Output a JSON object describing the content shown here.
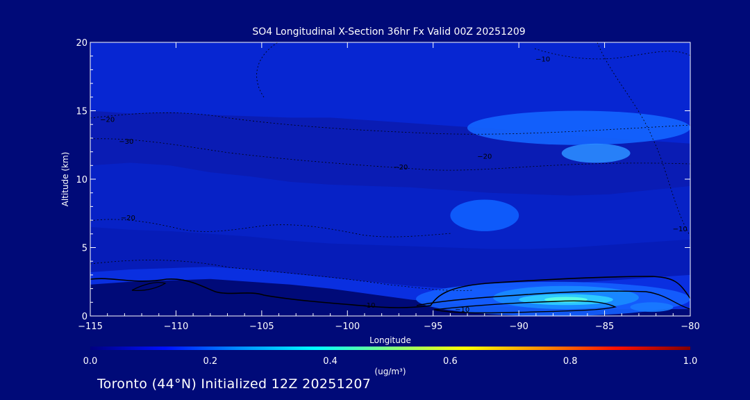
{
  "chart_data": {
    "type": "heatmap",
    "title": "SO4 Longitudinal X-Section 36hr  Fx Valid 00Z 20251209",
    "xlabel": "Longitude",
    "ylabel": "Altitude (km)",
    "xlim": [
      -115,
      -80
    ],
    "ylim": [
      0,
      20
    ],
    "x_ticks": [
      -115,
      -110,
      -105,
      -100,
      -95,
      -90,
      -85,
      -80
    ],
    "x_tick_labels": [
      "−115",
      "−110",
      "−105",
      "−100",
      "−95",
      "−90",
      "−85",
      "−80"
    ],
    "y_ticks": [
      0,
      5,
      10,
      15,
      20
    ],
    "y_tick_labels": [
      "0",
      "5",
      "10",
      "15",
      "20"
    ],
    "colorbar": {
      "label": "(ug/m³)",
      "range": [
        0.0,
        1.0
      ],
      "ticks": [
        0.0,
        0.2,
        0.4,
        0.6,
        0.8,
        1.0
      ],
      "tick_labels": [
        "0.0",
        "0.2",
        "0.4",
        "0.6",
        "0.8",
        "1.0"
      ],
      "colormap": [
        "#000080",
        "#0010ff",
        "#0090ff",
        "#00ffff",
        "#80ff80",
        "#ffff00",
        "#ff9000",
        "#ff1000",
        "#800000"
      ]
    },
    "filled_layers": [
      {
        "color": "#000a78",
        "y_top": [
          2.3,
          2.5,
          2.6,
          2.7,
          2.5,
          2.3,
          2.0,
          1.6,
          1.2,
          0.9,
          0.7,
          0.6,
          0.5,
          0.5,
          0.5,
          0.5
        ]
      },
      {
        "color": "#0726d2",
        "y_top": [
          20,
          20,
          20,
          20,
          20,
          20,
          20,
          20,
          20,
          20,
          20,
          20,
          20,
          20,
          20,
          20
        ]
      },
      {
        "color": "#0a1cb4",
        "y_top": [
          15.0,
          14.8,
          14.9,
          14.7,
          14.6,
          14.5,
          14.5,
          14.3,
          14.1,
          13.9,
          13.7,
          13.5,
          13.2,
          13.0,
          12.8,
          12.6
        ]
      },
      {
        "color": "#0722c6",
        "y_top": [
          11.0,
          11.2,
          11.0,
          10.5,
          10.2,
          9.8,
          9.6,
          9.5,
          9.4,
          9.2,
          9.0,
          8.9,
          8.8,
          8.9,
          9.2,
          9.5
        ]
      },
      {
        "color": "#061cb8",
        "y_top": [
          6.5,
          6.3,
          6.2,
          6.0,
          5.8,
          5.5,
          5.3,
          5.2,
          5.1,
          5.0,
          4.9,
          4.9,
          5.0,
          5.2,
          5.4,
          5.6
        ]
      },
      {
        "color": "#0a2fe0",
        "y_top": [
          3.2,
          3.4,
          3.5,
          3.6,
          3.4,
          3.1,
          2.8,
          2.5,
          2.2,
          2.0,
          2.0,
          2.2,
          2.4,
          2.6,
          2.8,
          3.0
        ]
      }
    ],
    "highlights": [
      {
        "color": "#1460ff",
        "lon": [
          -96,
          -80
        ],
        "alt": [
          0,
          2.5
        ]
      },
      {
        "color": "#1a8cff",
        "lon": [
          -91.5,
          -83
        ],
        "alt": [
          0.5,
          2.2
        ]
      },
      {
        "color": "#30d0ff",
        "lon": [
          -90,
          -84.5
        ],
        "alt": [
          0.8,
          1.6
        ]
      },
      {
        "color": "#60ffe0",
        "lon": [
          -88.5,
          -86
        ],
        "alt": [
          1.0,
          1.4
        ]
      },
      {
        "color": "#1466ff",
        "lon": [
          -93,
          -80
        ],
        "alt": [
          12.5,
          15
        ]
      },
      {
        "color": "#2a8cff",
        "lon": [
          -87.5,
          -83.5
        ],
        "alt": [
          11.2,
          12.6
        ]
      },
      {
        "color": "#1060ff",
        "lon": [
          -94,
          -90
        ],
        "alt": [
          6.2,
          8.5
        ]
      },
      {
        "color": "#1a7aff",
        "lon": [
          -83.5,
          -81
        ],
        "alt": [
          0.3,
          1.0
        ]
      }
    ],
    "contours": [
      {
        "label": "−10",
        "label_lon": -98.8,
        "label_alt": 0.6
      },
      {
        "label": "−10",
        "label_lon": -93.3,
        "label_alt": 0.3
      },
      {
        "label": "−20",
        "label_lon": -114.0,
        "label_alt": 14.2
      },
      {
        "label": "−30",
        "label_lon": -112.9,
        "label_alt": 12.6
      },
      {
        "label": "−20",
        "label_lon": -96.9,
        "label_alt": 10.7
      },
      {
        "label": "−20",
        "label_lon": -92.0,
        "label_alt": 11.5
      },
      {
        "label": "−20",
        "label_lon": -112.8,
        "label_alt": 7.0
      },
      {
        "label": "−10",
        "label_lon": -88.6,
        "label_alt": 18.6
      },
      {
        "label": "−10",
        "label_lon": -80.6,
        "label_alt": 6.2
      }
    ]
  },
  "footer": {
    "text": "Toronto (44°N) Initialized 12Z 20251207"
  }
}
